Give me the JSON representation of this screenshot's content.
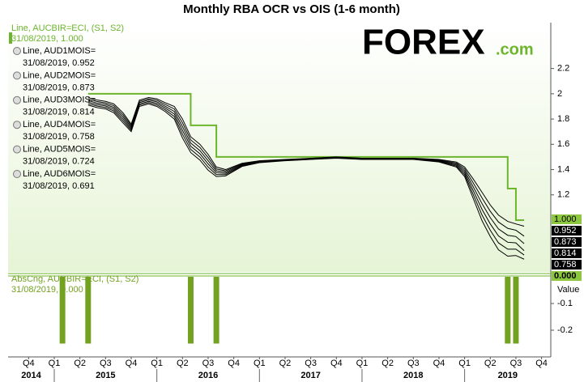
{
  "chart_data": [
    {
      "type": "line",
      "title": "Monthly RBA OCR vs OIS (1-6 month)",
      "logo": {
        "brand": "FOREX",
        "domain": ".com"
      },
      "xlim": [
        2014.55,
        2019.84
      ],
      "ylim": [
        0.59,
        2.55
      ],
      "yticks": [
        2.2,
        2,
        1.8,
        1.6,
        1.4,
        1.2
      ],
      "x": [
        2015.33,
        2015.42,
        2015.5,
        2015.58,
        2015.67,
        2015.75,
        2015.83,
        2015.92,
        2016.0,
        2016.08,
        2016.17,
        2016.25,
        2016.33,
        2016.42,
        2016.5,
        2016.58,
        2016.67,
        2016.83,
        2017.0,
        2017.25,
        2017.5,
        2017.75,
        2018.0,
        2018.25,
        2018.5,
        2018.75,
        2018.92,
        2019.0,
        2019.08,
        2019.17,
        2019.25,
        2019.33,
        2019.42,
        2019.5,
        2019.58
      ],
      "series": [
        {
          "name": "Line, AUCBIR=ECI, (S1, S2)",
          "legend_value": "31/08/2019, 1.000",
          "box_label": "1.000",
          "color": "#6cb52d",
          "step": true,
          "values": [
            2,
            2,
            2,
            2,
            2,
            2,
            2,
            2,
            2,
            2,
            2,
            2,
            1.75,
            1.75,
            1.75,
            1.5,
            1.5,
            1.5,
            1.5,
            1.5,
            1.5,
            1.5,
            1.5,
            1.5,
            1.5,
            1.5,
            1.5,
            1.5,
            1.5,
            1.5,
            1.5,
            1.5,
            1.25,
            1,
            1
          ]
        },
        {
          "name": "Line, AUD1MOIS=",
          "legend_value": "31/08/2019, 0.952",
          "box_label": "0.952",
          "color": "#000000",
          "values": [
            1.97,
            1.95,
            1.94,
            1.92,
            1.85,
            1.76,
            1.95,
            1.97,
            1.96,
            1.93,
            1.9,
            1.8,
            1.66,
            1.6,
            1.52,
            1.42,
            1.4,
            1.45,
            1.47,
            1.48,
            1.49,
            1.5,
            1.49,
            1.49,
            1.49,
            1.48,
            1.46,
            1.42,
            1.33,
            1.22,
            1.12,
            1.04,
            0.99,
            0.97,
            0.952
          ]
        },
        {
          "name": "Line, AUD2MOIS=",
          "legend_value": "31/08/2019, 0.873",
          "box_label": "0.873",
          "color": "#000000",
          "values": [
            1.958,
            1.938,
            1.928,
            1.906,
            1.834,
            1.748,
            1.94,
            1.96,
            1.948,
            1.916,
            1.88,
            1.77,
            1.635,
            1.575,
            1.495,
            1.405,
            1.39,
            1.445,
            1.467,
            1.478,
            1.488,
            1.498,
            1.488,
            1.488,
            1.488,
            1.476,
            1.452,
            1.405,
            1.3,
            1.175,
            1.07,
            0.985,
            0.935,
            0.92,
            0.873
          ]
        },
        {
          "name": "Line, AUD3MOIS=",
          "legend_value": "31/08/2019, 0.814",
          "box_label": "0.814",
          "color": "#000000",
          "values": [
            1.946,
            1.926,
            1.916,
            1.892,
            1.818,
            1.736,
            1.93,
            1.95,
            1.936,
            1.902,
            1.86,
            1.74,
            1.61,
            1.55,
            1.47,
            1.39,
            1.38,
            1.44,
            1.464,
            1.476,
            1.486,
            1.496,
            1.486,
            1.486,
            1.486,
            1.472,
            1.444,
            1.39,
            1.27,
            1.13,
            1.02,
            0.93,
            0.88,
            0.87,
            0.814
          ]
        },
        {
          "name": "Line, AUD4MOIS=",
          "legend_value": "31/08/2019, 0.758",
          "box_label": "0.758",
          "color": "#000000",
          "values": [
            1.934,
            1.914,
            1.904,
            1.878,
            1.802,
            1.724,
            1.92,
            1.94,
            1.924,
            1.888,
            1.84,
            1.71,
            1.585,
            1.525,
            1.445,
            1.375,
            1.37,
            1.435,
            1.461,
            1.474,
            1.484,
            1.494,
            1.484,
            1.484,
            1.484,
            1.468,
            1.436,
            1.375,
            1.24,
            1.085,
            0.97,
            0.875,
            0.825,
            0.82,
            0.758
          ]
        },
        {
          "name": "Line, AUD5MOIS=",
          "legend_value": "31/08/2019, 0.724",
          "color": "#000000",
          "values": [
            1.922,
            1.902,
            1.892,
            1.864,
            1.786,
            1.712,
            1.91,
            1.93,
            1.912,
            1.874,
            1.82,
            1.68,
            1.56,
            1.5,
            1.42,
            1.36,
            1.36,
            1.43,
            1.458,
            1.472,
            1.482,
            1.492,
            1.482,
            1.482,
            1.482,
            1.464,
            1.428,
            1.36,
            1.21,
            1.04,
            0.92,
            0.82,
            0.77,
            0.77,
            0.724
          ]
        },
        {
          "name": "Line, AUD6MOIS=",
          "legend_value": "31/08/2019, 0.691",
          "color": "#000000",
          "values": [
            1.91,
            1.89,
            1.88,
            1.85,
            1.77,
            1.7,
            1.9,
            1.92,
            1.9,
            1.86,
            1.8,
            1.65,
            1.535,
            1.475,
            1.395,
            1.345,
            1.35,
            1.425,
            1.455,
            1.47,
            1.48,
            1.49,
            1.48,
            1.48,
            1.48,
            1.46,
            1.42,
            1.345,
            1.18,
            0.995,
            0.87,
            0.765,
            0.715,
            0.72,
            0.691
          ]
        }
      ]
    },
    {
      "type": "bar",
      "y_axis_label": "Value",
      "xlim": [
        2014.55,
        2019.84
      ],
      "ylim": [
        -0.3,
        0.006
      ],
      "yticks": [
        -0.1,
        -0.2
      ],
      "xticks": [
        {
          "value": 2014.75,
          "label": "Q4"
        },
        {
          "value": 2015.0,
          "label": "Q1"
        },
        {
          "value": 2015.25,
          "label": "Q2"
        },
        {
          "value": 2015.5,
          "label": "Q3"
        },
        {
          "value": 2015.75,
          "label": "Q4"
        },
        {
          "value": 2016.0,
          "label": "Q1"
        },
        {
          "value": 2016.25,
          "label": "Q2"
        },
        {
          "value": 2016.5,
          "label": "Q3"
        },
        {
          "value": 2016.75,
          "label": "Q4"
        },
        {
          "value": 2017.0,
          "label": "Q1"
        },
        {
          "value": 2017.25,
          "label": "Q2"
        },
        {
          "value": 2017.5,
          "label": "Q3"
        },
        {
          "value": 2017.75,
          "label": "Q4"
        },
        {
          "value": 2018.0,
          "label": "Q1"
        },
        {
          "value": 2018.25,
          "label": "Q2"
        },
        {
          "value": 2018.5,
          "label": "Q3"
        },
        {
          "value": 2018.75,
          "label": "Q4"
        },
        {
          "value": 2019.0,
          "label": "Q1"
        },
        {
          "value": 2019.25,
          "label": "Q2"
        },
        {
          "value": 2019.5,
          "label": "Q3"
        },
        {
          "value": 2019.75,
          "label": "Q4"
        }
      ],
      "year_ticks": [
        2014,
        2015,
        2016,
        2017,
        2018,
        2019
      ],
      "series": [
        {
          "name": "AbsCng, AUCBIR=ECI, (S1, S2)",
          "legend_value": "31/08/2019, 0.000",
          "box_label": "0.000",
          "color": "#73a221",
          "x": [
            2015.08,
            2015.33,
            2016.33,
            2016.58,
            2019.42,
            2019.5
          ],
          "values": [
            -0.25,
            -0.25,
            -0.25,
            -0.25,
            -0.25,
            -0.25
          ]
        }
      ]
    }
  ]
}
